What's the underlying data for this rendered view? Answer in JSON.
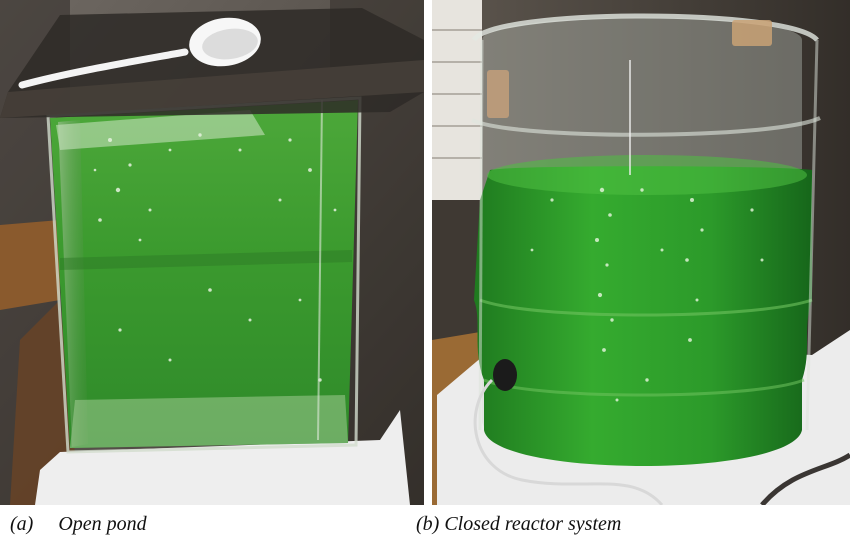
{
  "figure": {
    "panels": [
      {
        "caption_letter": "(a)",
        "caption_text": "Open pond",
        "culture_color": "#3fa32a",
        "contents": [
          "glass-tank",
          "green-algae-culture",
          "glass-lid",
          "plastic-ladle",
          "air-bubbles",
          "white-towel"
        ]
      },
      {
        "caption_letter": "(b)",
        "caption_text": "Closed reactor system",
        "culture_color": "#2fa22d",
        "contents": [
          "plastic-water-jug",
          "green-algae-culture",
          "air-bubbles",
          "air-tube",
          "white-towel"
        ]
      }
    ]
  }
}
